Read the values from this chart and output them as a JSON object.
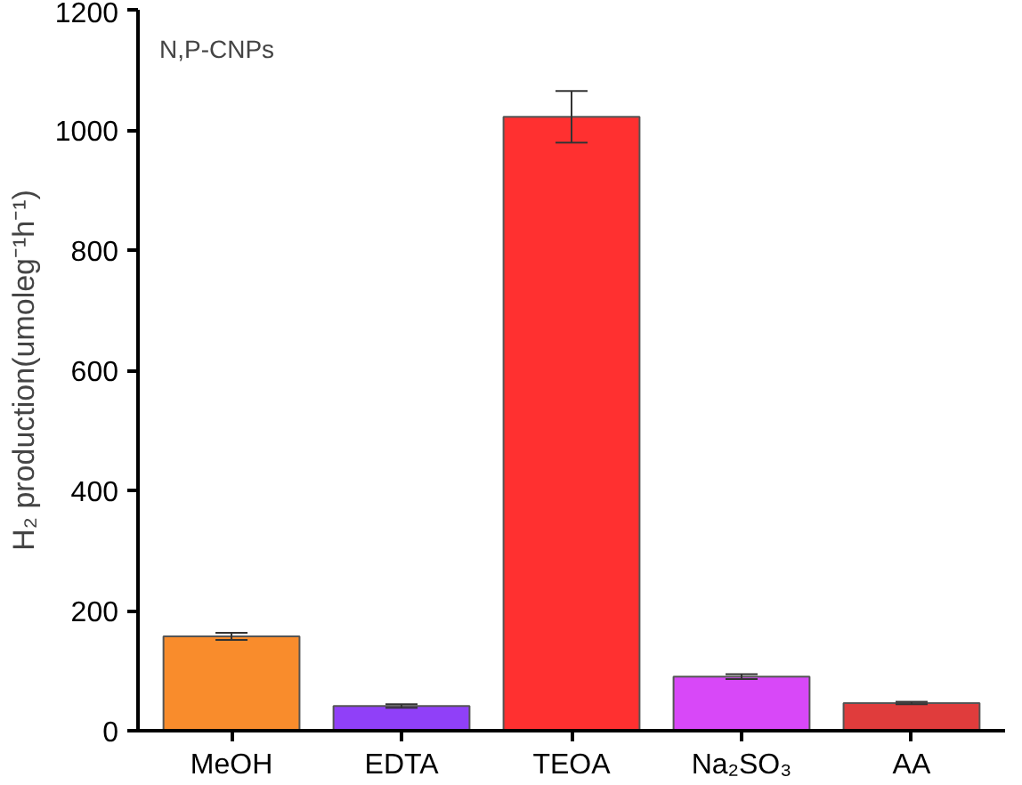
{
  "chart_data": {
    "type": "bar",
    "ylabel": "H₂ production(umoleg⁻¹h⁻¹)",
    "categories": [
      "MeOH",
      "EDTA",
      "TEOA",
      "Na₂SO₃",
      "AA"
    ],
    "values": [
      157,
      41,
      1022,
      90,
      46
    ],
    "errors": [
      6,
      3,
      43,
      4,
      2
    ],
    "colors": [
      "#f98c2c",
      "#9040f8",
      "#ff3030",
      "#d848f8",
      "#e03c3c"
    ],
    "ylim": [
      0,
      1200
    ],
    "yticks": [
      0,
      200,
      400,
      600,
      800,
      1000,
      1200
    ],
    "annotations": [
      "N,P-CNPs"
    ],
    "grid": false
  }
}
